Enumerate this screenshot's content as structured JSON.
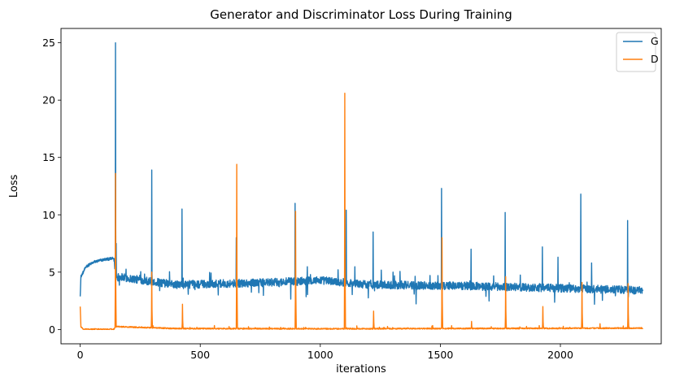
{
  "chart_data": {
    "type": "line",
    "title": "Generator and Discriminator Loss During Training",
    "xlabel": "iterations",
    "ylabel": "Loss",
    "xlim": [
      -80,
      2420
    ],
    "ylim": [
      -1.25,
      26.25
    ],
    "xticks": [
      0,
      500,
      1000,
      1500,
      2000
    ],
    "yticks": [
      0,
      5,
      10,
      15,
      20,
      25
    ],
    "grid": false,
    "legend_position": "top-right",
    "n_points": 2345,
    "series": [
      {
        "name": "G",
        "color": "#1f77b4",
        "baseline": [
          [
            0,
            3.0
          ],
          [
            3,
            4.6
          ],
          [
            25,
            5.5
          ],
          [
            60,
            5.9
          ],
          [
            100,
            6.1
          ],
          [
            140,
            6.2
          ],
          [
            150,
            4.6
          ],
          [
            400,
            3.9
          ],
          [
            800,
            4.1
          ],
          [
            1000,
            4.3
          ],
          [
            1200,
            3.9
          ],
          [
            1600,
            3.8
          ],
          [
            2000,
            3.6
          ],
          [
            2344,
            3.4
          ]
        ],
        "noise": 0.35,
        "spikes": [
          [
            147,
            25.0
          ],
          [
            150,
            7.5
          ],
          [
            298,
            13.9
          ],
          [
            424,
            10.5
          ],
          [
            650,
            8.0
          ],
          [
            895,
            11.0
          ],
          [
            1108,
            10.4
          ],
          [
            1220,
            8.5
          ],
          [
            1505,
            12.3
          ],
          [
            1628,
            7.0
          ],
          [
            1770,
            10.2
          ],
          [
            1925,
            7.2
          ],
          [
            1990,
            6.3
          ],
          [
            2085,
            11.8
          ],
          [
            2130,
            5.8
          ],
          [
            2280,
            9.5
          ]
        ]
      },
      {
        "name": "D",
        "color": "#ff7f0e",
        "baseline": [
          [
            0,
            2.0
          ],
          [
            3,
            0.2
          ],
          [
            15,
            0.02
          ],
          [
            140,
            0.02
          ],
          [
            150,
            0.25
          ],
          [
            400,
            0.08
          ],
          [
            1000,
            0.06
          ],
          [
            2000,
            0.1
          ],
          [
            2344,
            0.12
          ]
        ],
        "noise": 0.05,
        "spikes": [
          [
            147,
            13.6
          ],
          [
            298,
            5.0
          ],
          [
            426,
            2.2
          ],
          [
            652,
            14.4
          ],
          [
            897,
            10.3
          ],
          [
            1102,
            20.6
          ],
          [
            1222,
            1.6
          ],
          [
            1507,
            8.0
          ],
          [
            1630,
            0.7
          ],
          [
            1772,
            4.6
          ],
          [
            1927,
            2.0
          ],
          [
            2090,
            4.1
          ],
          [
            2165,
            0.5
          ],
          [
            2282,
            4.0
          ]
        ]
      }
    ]
  }
}
